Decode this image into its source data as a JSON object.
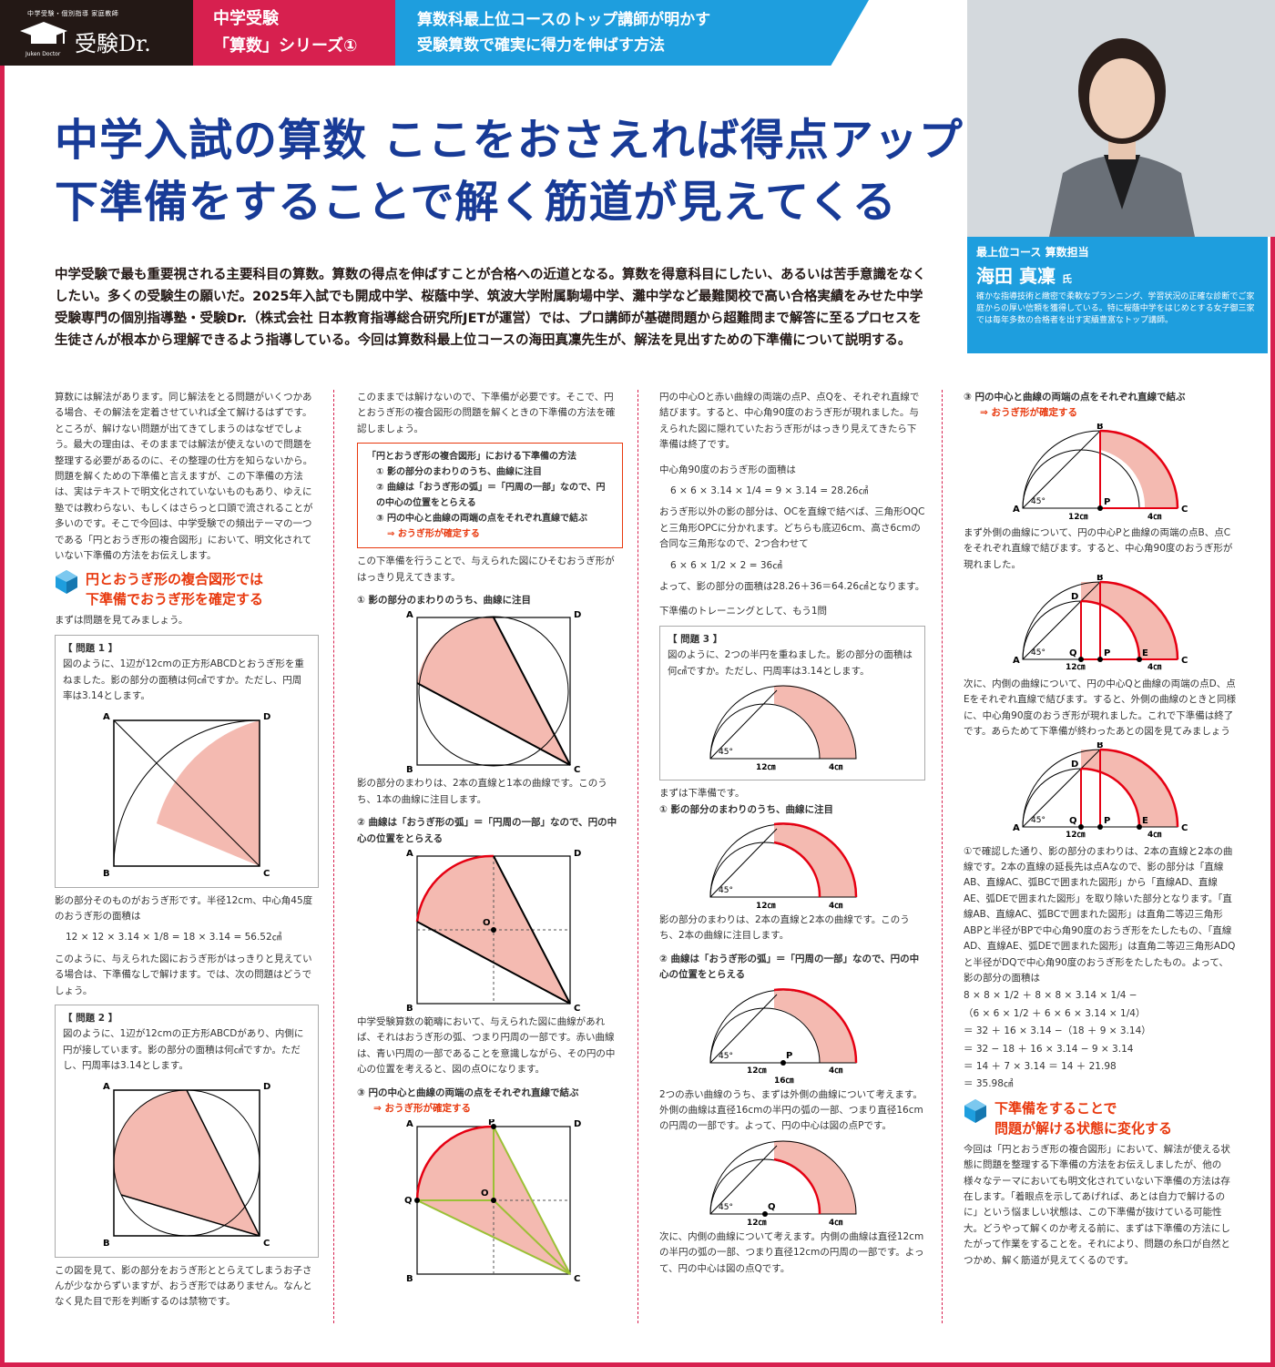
{
  "header": {
    "logo_sub": "中学受験・個別指導 家庭教師",
    "logo_name": "受験Dr.",
    "logo_en": "Juken Doctor",
    "series_1": "中学受験",
    "series_2": "「算数」シリーズ①",
    "tag_1": "算数科最上位コースのトップ講師が明かす",
    "tag_2": "受験算数で確実に得力を伸ばす方法"
  },
  "headline": {
    "line1": "中学入試の算数 ここをおさえれば得点アップ",
    "line2": "下準備をすることで解く筋道が見えてくる"
  },
  "profile": {
    "role": "最上位コース 算数担当",
    "name": "海田 真凜",
    "suffix": "氏",
    "desc": "確かな指導技術と緻密で柔軟なプランニング、学習状況の正確な診断でご家庭からの厚い信頼を獲得している。特に桜蔭中学をはじめとする女子御三家では毎年多数の合格者を出す実績豊富なトップ講師。"
  },
  "lead": "中学受験で最も重要視される主要科目の算数。算数の得点を伸ばすことが合格への近道となる。算数を得意科目にしたい、あるいは苦手意識をなくしたい。多くの受験生の願いだ。2025年入試でも開成中学、桜蔭中学、筑波大学附属駒場中学、灘中学など最難関校で高い合格実績をみせた中学受験専門の個別指導塾・受験Dr.（株式会社 日本教育指導総合研究所JETが運営）では、プロ講師が基礎問題から超難問まで解答に至るプロセスを生徒さんが根本から理解できるよう指導している。今回は算数科最上位コースの海田真凜先生が、解法を見出すための下準備について説明する。",
  "col1": {
    "intro": "算数には解法があります。同じ解法をとる問題がいくつかある場合、その解法を定着させていれば全て解けるはずです。ところが、解けない問題が出てきてしまうのはなぜでしょう。最大の理由は、そのままでは解法が使えないので問題を整理する必要があるのに、その整理の仕方を知らないから。問題を解くための下準備と言えますが、この下準備の方法は、実はテキストで明文化されていないものもあり、ゆえに塾では教わらない、もしくはさらっと口頭で流されることが多いのです。そこで今回は、中学受験での頻出テーマの一つである「円とおうぎ形の複合図形」において、明文化されていない下準備の方法をお伝えします。",
    "sec1a": "円とおうぎ形の複合図形では",
    "sec1b": "下準備でおうぎ形を確定する",
    "look": "まずは問題を見てみましょう。",
    "q1_title": "【 問題 1 】",
    "q1_text": "図のように、1辺が12cmの正方形ABCDとおうぎ形を重ねました。影の部分の面積は何㎠ですか。ただし、円周率は3.14とします。",
    "after1": "影の部分そのものがおうぎ形です。半径12cm、中心角45度のおうぎ形の面積は",
    "eq1": "12 × 12 × 3.14 × 1/8 = 18 × 3.14 = 56.52㎠",
    "after2": "このように、与えられた図におうぎ形がはっきりと見えている場合は、下準備なしで解けます。では、次の問題はどうでしょう。",
    "q2_title": "【 問題 2 】",
    "q2_text": "図のように、1辺が12cmの正方形ABCDがあり、内側に円が接しています。影の部分の面積は何㎠ですか。ただし、円周率は3.14とします。",
    "after3": "この図を見て、影の部分をおうぎ形ととらえてしまうお子さんが少なからずいますが、おうぎ形ではありません。なんとなく見た目で形を判断するのは禁物です。"
  },
  "col2": {
    "t1": "このままでは解けないので、下準備が必要です。そこで、円とおうぎ形の複合図形の問題を解くときの下準備の方法を確認しましょう。",
    "box_title": "「円とおうぎ形の複合図形」における下準備の方法",
    "box_1": "① 影の部分のまわりのうち、曲線に注目",
    "box_2": "② 曲線は「おうぎ形の弧」＝「円周の一部」なので、円の中心の位置をとらえる",
    "box_3": "③ 円の中心と曲線の両端の点をそれぞれ直線で結ぶ",
    "box_4": "⇒ おうぎ形が確定する",
    "t2": "この下準備を行うことで、与えられた図にひそむおうぎ形がはっきり見えてきます。",
    "s1": "① 影の部分のまわりのうち、曲線に注目",
    "t3": "影の部分のまわりは、2本の直線と1本の曲線です。このうち、1本の曲線に注目します。",
    "s2": "② 曲線は「おうぎ形の弧」＝「円周の一部」なので、円の中心の位置をとらえる",
    "t4": "中学受験算数の範疇において、与えられた図に曲線があれば、それはおうぎ形の弧、つまり円周の一部です。赤い曲線は、青い円周の一部であることを意識しながら、その円の中心の位置を考えると、図の点Oになります。",
    "s3": "③ 円の中心と曲線の両端の点をそれぞれ直線で結ぶ",
    "s3b": "⇒ おうぎ形が確定する"
  },
  "col3": {
    "t1": "円の中心Oと赤い曲線の両端の点P、点Qを、それぞれ直線で結びます。すると、中心角90度のおうぎ形が現れました。与えられた図に隠れていたおうぎ形がはっきり見えてきたら下準備は終了です。",
    "t2": "中心角90度のおうぎ形の面積は",
    "eq1": "6 × 6 × 3.14 × 1/4 = 9 × 3.14 = 28.26㎠",
    "t3": "おうぎ形以外の影の部分は、OCを直線で結べば、三角形OQCと三角形OPCに分かれます。どちらも底辺6cm、高さ6cmの合同な三角形なので、2つ合わせて",
    "eq2": "6 × 6 × 1/2 × 2 = 36㎠",
    "t4": "よって、影の部分の面積は28.26＋36＝64.26㎠となります。",
    "t5": "下準備のトレーニングとして、もう1問",
    "q3_title": "【 問題 3 】",
    "q3_text": "図のように、2つの半円を重ねました。影の部分の面積は何㎠ですか。ただし、円周率は3.14とします。",
    "t6": "まずは下準備です。",
    "s1": "① 影の部分のまわりのうち、曲線に注目",
    "t7": "影の部分のまわりは、2本の直線と2本の曲線です。このうち、2本の曲線に注目します。",
    "s2": "② 曲線は「おうぎ形の弧」＝「円周の一部」なので、円の中心の位置をとらえる",
    "t8": "2つの赤い曲線のうち、まずは外側の曲線について考えます。外側の曲線は直径16cmの半円の弧の一部、つまり直径16cmの円周の一部です。よって、円の中心は図の点Pです。",
    "t9": "次に、内側の曲線について考えます。内側の曲線は直径12cmの半円の弧の一部、つまり直径12cmの円周の一部です。よって、円の中心は図の点Qです。"
  },
  "col4": {
    "s3": "③ 円の中心と曲線の両端の点をそれぞれ直線で結ぶ",
    "s3b": "⇒ おうぎ形が確定する",
    "t1": "まず外側の曲線について、円の中心Pと曲線の両端の点B、点Cをそれぞれ直線で結びます。すると、中心角90度のおうぎ形が現れました。",
    "t2": "次に、内側の曲線について、円の中心Qと曲線の両端の点D、点Eをそれぞれ直線で結びます。すると、外側の曲線のときと同様に、中心角90度のおうぎ形が現れました。これで下準備は終了です。あらためて下準備が終わったあとの図を見てみましょう",
    "t3": "①で確認した通り、影の部分のまわりは、2本の直線と2本の曲線です。2本の直線の延長先は点Aなので、影の部分は「直線AB、直線AC、弧BCで囲まれた図形」から「直線AD、直線AE、弧DEで囲まれた図形」を取り除いた部分となります。「直線AB、直線AC、弧BCで囲まれた図形」は直角二等辺三角形ABPと半径がBPで中心角90度のおうぎ形をたしたもの、「直線AD、直線AE、弧DEで囲まれた図形」は直角二等辺三角形ADQと半径がDQで中心角90度のおうぎ形をたしたもの。よって、影の部分の面積は",
    "eq1": "8 × 8 × 1/2 ＋ 8 × 8 × 3.14 × 1/4 −",
    "eq2": "（6 × 6 × 1/2 ＋ 6 × 6 × 3.14 × 1/4）",
    "eq3": "＝ 32 ＋ 16 × 3.14 −（18 ＋ 9 × 3.14）",
    "eq4": "＝ 32 − 18 ＋ 16 × 3.14 − 9 × 3.14",
    "eq5": "＝ 14 ＋ 7 × 3.14 ＝ 14 ＋ 21.98",
    "eq6": "＝ 35.98㎠",
    "sec2a": "下準備をすることで",
    "sec2b": "問題が解ける状態に変化する",
    "t4": "今回は「円とおうぎ形の複合図形」において、解法が使える状態に問題を整理する下準備の方法をお伝えしましたが、他の様々なテーマにおいても明文化されていない下準備の方法は存在します。「着眼点を示してあげれば、あとは自力で解けるのに」という悩ましい状態は、この下準備が抜けている可能性大。どうやって解くのか考える前に、まずは下準備の方法にしたがって作業をすることを。それにより、問題の糸口が自然とつかめ、解く筋道が見えてくるのです。"
  },
  "labels": {
    "A": "A",
    "B": "B",
    "C": "C",
    "D": "D",
    "O": "O",
    "P": "P",
    "Q": "Q",
    "E": "E",
    "deg45": "45°",
    "cm12": "12㎝",
    "cm16": "16㎝",
    "cm4": "4㎝"
  },
  "colors": {
    "brand_red": "#d7204f",
    "brand_blue": "#1e9ede",
    "headline": "#183b97",
    "shade": "#f4bab1",
    "arc_red": "#e60012",
    "green": "#9bc036"
  }
}
